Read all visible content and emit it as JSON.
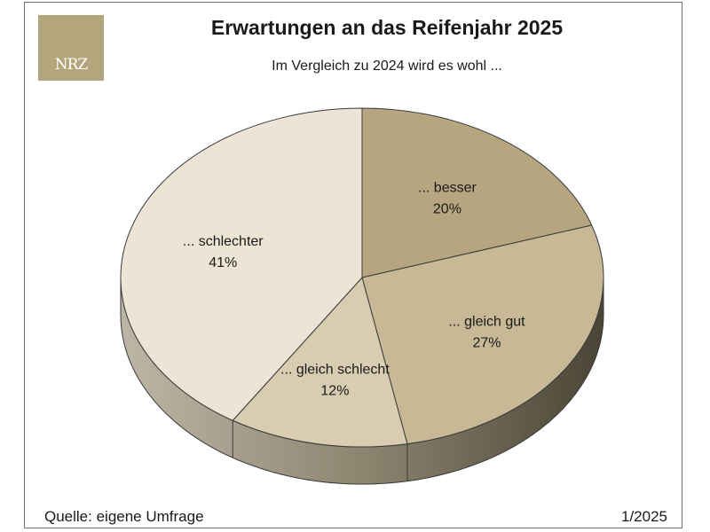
{
  "logo": {
    "text": "NRZ",
    "color": "#b3a67c"
  },
  "footer": {
    "source": "Quelle: eigene Umfrage",
    "date": "1/2025"
  },
  "chart_data": {
    "type": "pie",
    "title": "Erwartungen an das Reifenjahr 2025",
    "subtitle": "Im Vergleich zu 2024 wird es wohl ...",
    "slices": [
      {
        "label": "... besser",
        "value": 20,
        "display": "20%",
        "color": "#b5a680"
      },
      {
        "label": "... gleich gut",
        "value": 27,
        "display": "27%",
        "color": "#c7b995"
      },
      {
        "label": "... gleich schlecht",
        "value": 12,
        "display": "12%",
        "color": "#d8cdb0"
      },
      {
        "label": "... schlechter",
        "value": 41,
        "display": "41%",
        "color": "#ece5d6"
      }
    ],
    "start": "12 o'clock",
    "direction": "clockwise",
    "style": "3d"
  }
}
